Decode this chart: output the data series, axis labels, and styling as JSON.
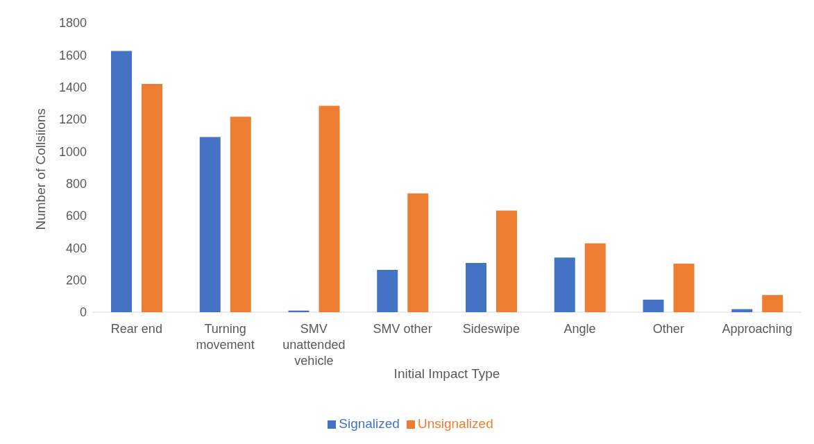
{
  "chart_data": {
    "type": "bar",
    "xlabel": "Initial Impact Type",
    "ylabel": "Number of Collsiions",
    "categories": [
      "Rear end",
      "Turning movement",
      "SMV unattended vehicle",
      "SMV other",
      "Sideswipe",
      "Angle",
      "Other",
      "Approaching"
    ],
    "series": [
      {
        "name": "Signalized",
        "color": "#4472c4",
        "values": [
          1625,
          1090,
          10,
          263,
          306,
          340,
          78,
          19
        ]
      },
      {
        "name": "Unsignalized",
        "color": "#ed7d31",
        "values": [
          1420,
          1216,
          1284,
          739,
          632,
          428,
          302,
          107
        ]
      }
    ],
    "ylim": [
      0,
      1800
    ],
    "yticks": [
      0,
      200,
      400,
      600,
      800,
      1000,
      1200,
      1400,
      1600,
      1800
    ],
    "grid": false,
    "legend": "bottom"
  }
}
